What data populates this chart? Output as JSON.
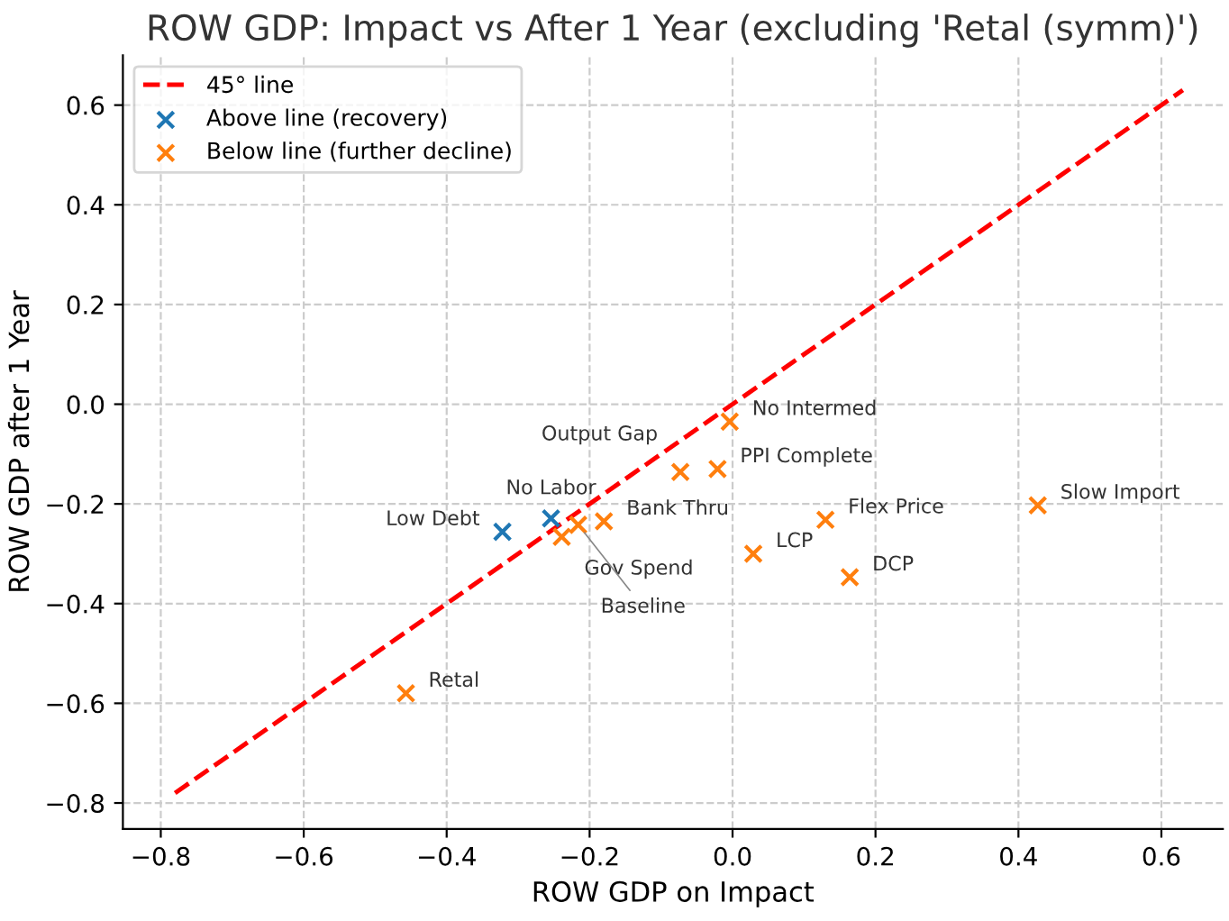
{
  "chart_data": {
    "type": "scatter",
    "title": "ROW GDP: Impact vs After 1 Year (excluding 'Retal (symm)')",
    "xlabel": "ROW GDP on Impact",
    "ylabel": "ROW GDP after 1 Year",
    "xlim": [
      -0.853,
      0.686
    ],
    "ylim": [
      -0.852,
      0.7
    ],
    "xticks": [
      {
        "value": -0.8,
        "label": "−0.8"
      },
      {
        "value": -0.6,
        "label": "−0.6"
      },
      {
        "value": -0.4,
        "label": "−0.4"
      },
      {
        "value": -0.2,
        "label": "−0.2"
      },
      {
        "value": 0,
        "label": "0.0"
      },
      {
        "value": 0.2,
        "label": "0.2"
      },
      {
        "value": 0.4,
        "label": "0.4"
      },
      {
        "value": 0.6,
        "label": "0.6"
      }
    ],
    "yticks": [
      {
        "value": -0.8,
        "label": "−0.8"
      },
      {
        "value": -0.6,
        "label": "−0.6"
      },
      {
        "value": -0.4,
        "label": "−0.4"
      },
      {
        "value": -0.2,
        "label": "−0.2"
      },
      {
        "value": 0,
        "label": "0.0"
      },
      {
        "value": 0.2,
        "label": "0.2"
      },
      {
        "value": 0.4,
        "label": "0.4"
      },
      {
        "value": 0.6,
        "label": "0.6"
      }
    ],
    "grid": true,
    "legend": "top left",
    "series": [
      {
        "name": "45° line",
        "type": "line",
        "line_style": "dashed",
        "color": "#ff0000",
        "x": [
          -0.78,
          0.63
        ],
        "values": [
          -0.78,
          0.63
        ]
      },
      {
        "name": "Above line (recovery)",
        "marker": "cross",
        "color": "#1f77b4",
        "x": [
          -0.322,
          -0.254
        ],
        "values": [
          -0.256,
          -0.229
        ]
      },
      {
        "name": "Below line (further decline)",
        "marker": "cross",
        "color": "#ff7f0e",
        "x": [
          -0.239,
          -0.216,
          -0.18,
          -0.073,
          -0.021,
          -0.004,
          0.13,
          0.029,
          0.164,
          0.427,
          -0.457
        ],
        "values": [
          -0.266,
          -0.242,
          -0.235,
          -0.136,
          -0.13,
          -0.035,
          -0.232,
          -0.3,
          -0.347,
          -0.203,
          -0.58
        ]
      }
    ],
    "annotations": [
      {
        "text": "Low Debt",
        "x": -0.322,
        "y": -0.256
      },
      {
        "text": "No Labor",
        "x": -0.254,
        "y": -0.229
      },
      {
        "text": "Gov Spend",
        "x": -0.239,
        "y": -0.266
      },
      {
        "text": "Baseline",
        "x": -0.216,
        "y": -0.242
      },
      {
        "text": "Bank Thru",
        "x": -0.18,
        "y": -0.235
      },
      {
        "text": "Output Gap",
        "x": -0.073,
        "y": -0.136
      },
      {
        "text": "PPI Complete",
        "x": -0.021,
        "y": -0.13
      },
      {
        "text": "No Intermed",
        "x": -0.004,
        "y": -0.035
      },
      {
        "text": "Flex Price",
        "x": 0.13,
        "y": -0.232
      },
      {
        "text": "LCP",
        "x": 0.029,
        "y": -0.3
      },
      {
        "text": "DCP",
        "x": 0.164,
        "y": -0.347
      },
      {
        "text": "Slow Import",
        "x": 0.427,
        "y": -0.203
      },
      {
        "text": "Retal",
        "x": -0.457,
        "y": -0.58
      }
    ]
  }
}
